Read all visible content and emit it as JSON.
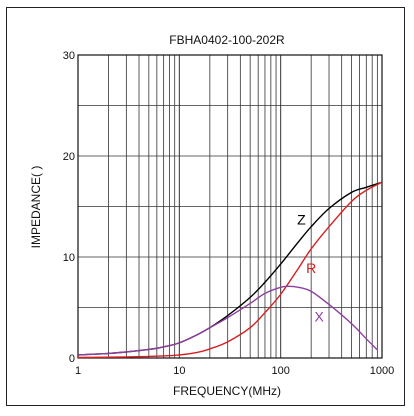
{
  "chart_data": {
    "type": "line",
    "title": "FBHA0402-100-202R",
    "xlabel": "FREQUENCY(MHz)",
    "ylabel": "IMPEDANCE(  )",
    "x_scale": "log",
    "xlim": [
      1,
      1000
    ],
    "ylim": [
      0,
      30
    ],
    "x_ticks": [
      1,
      10,
      100,
      1000
    ],
    "x_tick_labels": [
      "1",
      "10",
      "100",
      "1000"
    ],
    "y_ticks": [
      0,
      10,
      20,
      30
    ],
    "y_tick_labels": [
      "0",
      "10",
      "20",
      "30"
    ],
    "grid": true,
    "series": [
      {
        "name": "Z",
        "color": "#000000",
        "x": [
          1,
          2,
          3,
          5,
          7,
          10,
          15,
          20,
          30,
          50,
          70,
          100,
          150,
          200,
          300,
          500,
          700,
          1000
        ],
        "y": [
          0.3,
          0.45,
          0.6,
          0.85,
          1.1,
          1.5,
          2.3,
          3.0,
          4.2,
          6.0,
          7.5,
          9.3,
          11.5,
          13.0,
          14.8,
          16.4,
          16.9,
          17.4
        ]
      },
      {
        "name": "R",
        "color": "#d42020",
        "x": [
          1,
          3,
          7,
          10,
          15,
          20,
          30,
          50,
          70,
          100,
          150,
          200,
          300,
          500,
          700,
          1000
        ],
        "y": [
          0.05,
          0.1,
          0.2,
          0.3,
          0.55,
          0.9,
          1.6,
          3.0,
          4.5,
          6.3,
          8.9,
          10.8,
          13.0,
          15.5,
          16.6,
          17.4
        ]
      },
      {
        "name": "X",
        "color": "#8e3fa0",
        "x": [
          1,
          2,
          3,
          5,
          7,
          10,
          15,
          20,
          30,
          50,
          70,
          100,
          120,
          150,
          200,
          300,
          500,
          700,
          900
        ],
        "y": [
          0.3,
          0.45,
          0.6,
          0.85,
          1.1,
          1.5,
          2.3,
          3.0,
          4.0,
          5.4,
          6.4,
          7.0,
          7.1,
          7.0,
          6.6,
          5.3,
          3.4,
          1.9,
          0.8
        ]
      }
    ],
    "labels": [
      {
        "text": "Z",
        "x": 160,
        "y": 13.2,
        "color": "#000000"
      },
      {
        "text": "R",
        "x": 200,
        "y": 8.4,
        "color": "#d42020"
      },
      {
        "text": "X",
        "x": 240,
        "y": 3.6,
        "color": "#8e3fa0"
      }
    ]
  }
}
